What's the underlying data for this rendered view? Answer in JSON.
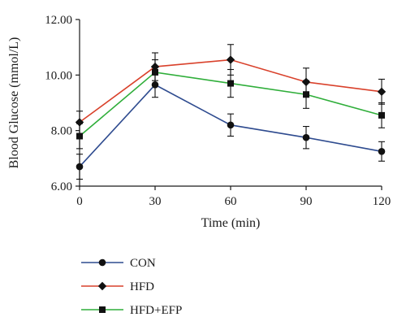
{
  "chart_data": {
    "type": "line",
    "xlabel": "Time (min)",
    "ylabel": "Blood Glucose (mmol/L)",
    "x": [
      0,
      30,
      60,
      90,
      120
    ],
    "x_ticks": [
      "0",
      "30",
      "60",
      "90",
      "120"
    ],
    "xlim": [
      0,
      120
    ],
    "y_ticks": [
      "6.00",
      "8.00",
      "10.00",
      "12.00"
    ],
    "ylim": [
      6,
      12
    ],
    "grid": false,
    "legend_position": "bottom-left",
    "series": [
      {
        "name": "CON",
        "color": "#2e4b8f",
        "marker": "circle",
        "values": [
          6.7,
          9.65,
          8.2,
          7.75,
          7.25
        ],
        "errors": [
          0.45,
          0.45,
          0.4,
          0.4,
          0.35
        ]
      },
      {
        "name": "HFD",
        "color": "#d9412b",
        "marker": "diamond",
        "values": [
          8.3,
          10.3,
          10.55,
          9.75,
          9.4
        ],
        "errors": [
          0.4,
          0.5,
          0.55,
          0.5,
          0.45
        ]
      },
      {
        "name": "HFD+EFP",
        "color": "#2fae3a",
        "marker": "square",
        "values": [
          7.8,
          10.1,
          9.7,
          9.3,
          8.55
        ],
        "errors": [
          0.45,
          0.45,
          0.5,
          0.5,
          0.45
        ]
      }
    ]
  }
}
